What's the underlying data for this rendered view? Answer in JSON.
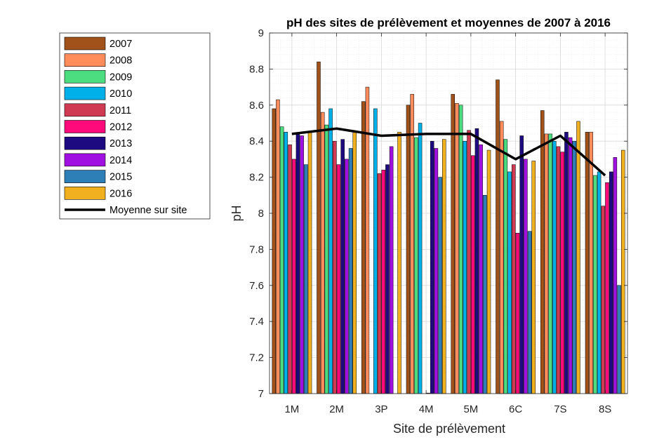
{
  "chart_data": {
    "type": "bar",
    "title": "pH des sites de prélèvement et moyennes de 2007 à 2016",
    "xlabel": "Site de prélèvement",
    "ylabel": "pH",
    "ylim": [
      7,
      9
    ],
    "yticks": [
      "7",
      "7.2",
      "7.4",
      "7.6",
      "7.8",
      "8",
      "8.2",
      "8.4",
      "8.6",
      "8.8",
      "9"
    ],
    "grid": true,
    "minor_grid": true,
    "legend_position": "outside-left-top",
    "categories": [
      "1M",
      "2M",
      "3P",
      "4M",
      "5M",
      "6C",
      "7S",
      "8S"
    ],
    "series": [
      {
        "name": "2007",
        "color": "#A0521A",
        "values": [
          8.58,
          8.84,
          8.62,
          8.6,
          8.66,
          8.74,
          8.57,
          8.45
        ]
      },
      {
        "name": "2008",
        "color": "#FF8C5A",
        "values": [
          8.63,
          8.56,
          8.7,
          8.66,
          8.61,
          8.51,
          8.44,
          8.45
        ]
      },
      {
        "name": "2009",
        "color": "#4CDD80",
        "values": [
          8.48,
          8.49,
          null,
          8.42,
          8.6,
          8.41,
          8.44,
          8.21
        ]
      },
      {
        "name": "2010",
        "color": "#00B0E8",
        "values": [
          8.45,
          8.58,
          8.58,
          8.5,
          8.4,
          8.23,
          8.4,
          8.23
        ]
      },
      {
        "name": "2011",
        "color": "#D03A52",
        "values": [
          8.38,
          8.4,
          8.22,
          null,
          8.46,
          8.27,
          8.37,
          8.04
        ]
      },
      {
        "name": "2012",
        "color": "#FF0A7A",
        "values": [
          8.3,
          8.27,
          8.24,
          7.0,
          8.32,
          7.89,
          8.34,
          8.17
        ]
      },
      {
        "name": "2013",
        "color": "#1E0A80",
        "values": [
          8.44,
          8.41,
          8.27,
          8.4,
          8.47,
          8.43,
          8.45,
          8.23
        ]
      },
      {
        "name": "2014",
        "color": "#A010E0",
        "values": [
          8.43,
          8.3,
          8.37,
          8.36,
          8.38,
          8.3,
          8.42,
          8.31
        ]
      },
      {
        "name": "2015",
        "color": "#2E7FB8",
        "values": [
          8.27,
          8.36,
          null,
          8.2,
          8.1,
          7.9,
          8.4,
          7.6
        ]
      },
      {
        "name": "2016",
        "color": "#F0B020",
        "values": [
          8.45,
          8.45,
          8.45,
          8.41,
          8.35,
          8.29,
          8.51,
          8.35
        ]
      }
    ],
    "line_series": {
      "name": "Moyenne sur site",
      "color": "#000000",
      "values": [
        8.44,
        8.47,
        8.43,
        8.44,
        8.44,
        8.3,
        8.43,
        8.21
      ]
    }
  }
}
